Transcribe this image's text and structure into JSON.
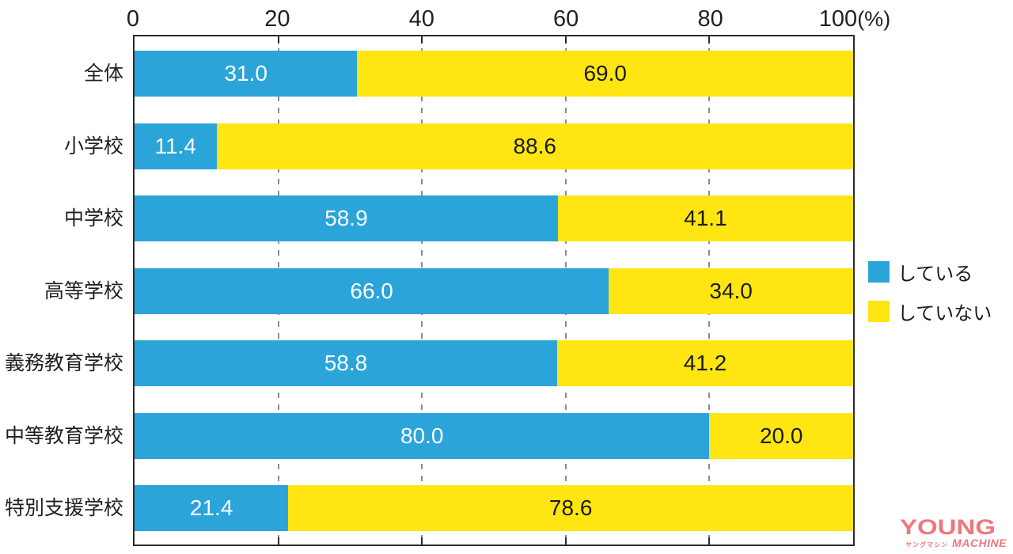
{
  "chart_data": {
    "type": "bar",
    "orientation": "horizontal",
    "stacked": true,
    "title": "",
    "xlabel": "",
    "ylabel": "",
    "unit_label": "(%)",
    "xlim": [
      0,
      100
    ],
    "x_ticks": [
      0,
      20,
      40,
      60,
      80,
      100
    ],
    "grid": "dashed-vertical",
    "legend_position": "right",
    "categories": [
      "全体",
      "小学校",
      "中学校",
      "高等学校",
      "義務教育学校",
      "中等教育学校",
      "特別支援学校"
    ],
    "series": [
      {
        "name": "している",
        "color": "#2ba4da",
        "values": [
          31.0,
          11.4,
          58.9,
          66.0,
          58.8,
          80.0,
          21.4
        ]
      },
      {
        "name": "していない",
        "color": "#ffe511",
        "values": [
          69.0,
          88.6,
          41.1,
          34.0,
          41.2,
          20.0,
          78.6
        ]
      }
    ],
    "legend": [
      {
        "label": "している",
        "color": "#2ba4da"
      },
      {
        "label": "していない",
        "color": "#ffe511"
      }
    ]
  },
  "watermark": {
    "line1": "YOUNG",
    "katakana": "ヤングマシン",
    "line2": "MACHINE",
    "color": "#ee777e"
  }
}
